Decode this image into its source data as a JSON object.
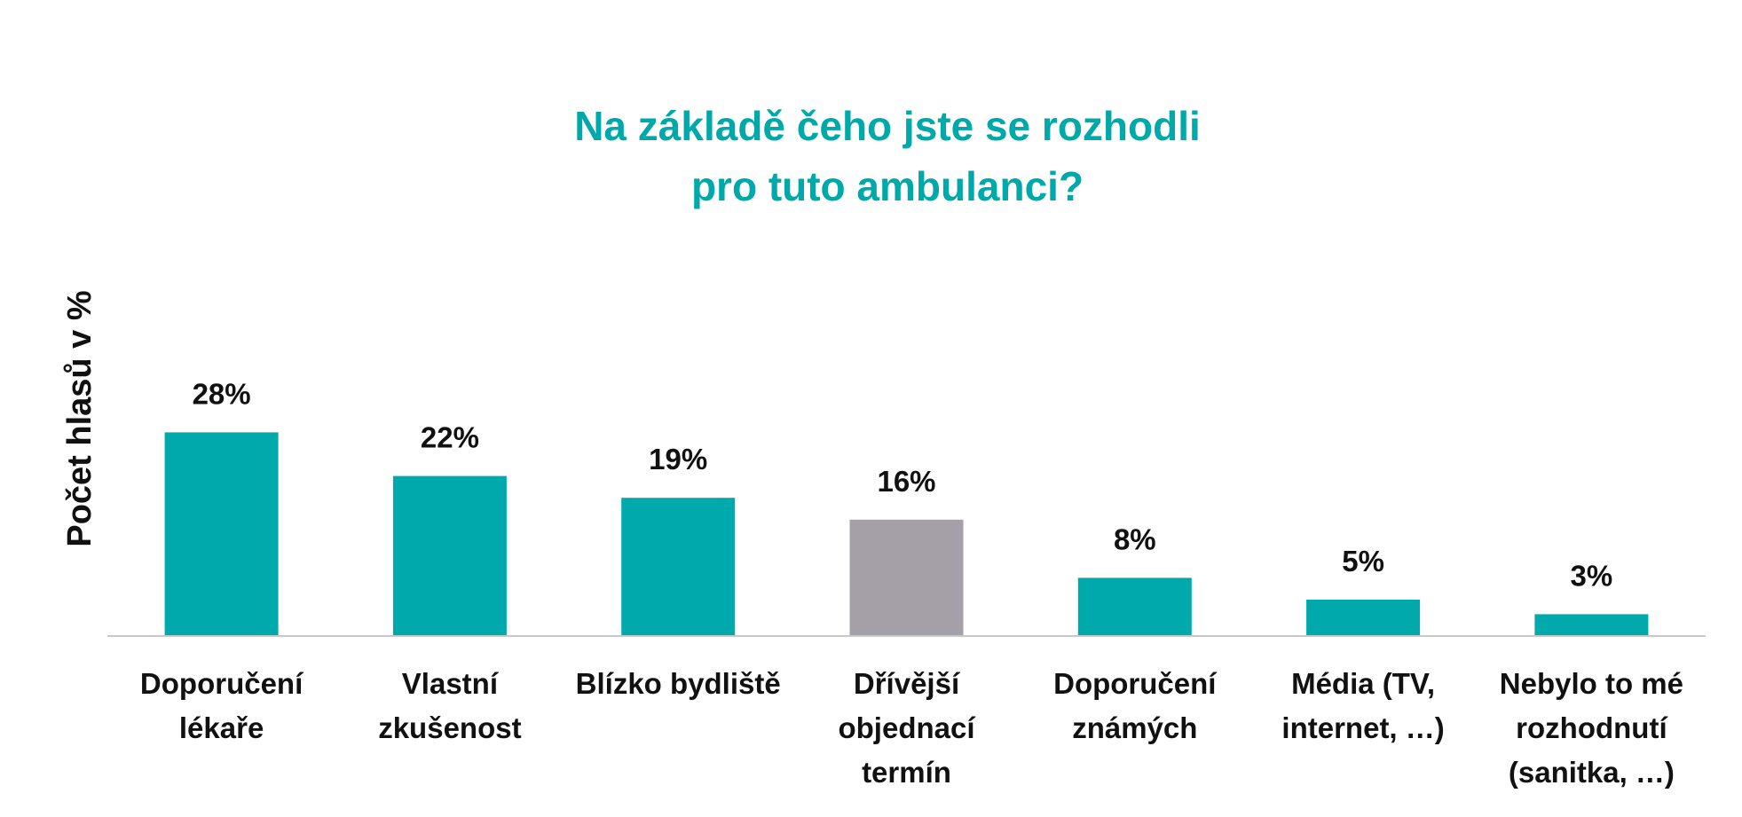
{
  "chart_data": {
    "type": "bar",
    "title_lines": [
      "Na základě čeho jste se rozhodli",
      "pro tuto ambulanci?"
    ],
    "xlabel": "",
    "ylabel": "Počet hlasů v %",
    "ylim": [
      0,
      30
    ],
    "grid": false,
    "legend": "none",
    "categories": [
      [
        "Doporučení",
        "lékaře"
      ],
      [
        "Vlastní",
        "zkušenost"
      ],
      [
        "Blízko bydliště"
      ],
      [
        "Dřívější",
        "objednací",
        "termín"
      ],
      [
        "Doporučení",
        "známých"
      ],
      [
        "Média (TV,",
        "internet, …)"
      ],
      [
        "Nebylo to mé",
        "rozhodnutí",
        "(sanitka, …)"
      ]
    ],
    "values": [
      28,
      22,
      19,
      16,
      8,
      5,
      3
    ],
    "data_labels": [
      "28%",
      "22%",
      "19%",
      "16%",
      "8%",
      "5%",
      "3%"
    ],
    "highlight_index": 3,
    "colors": {
      "bar": "#00a9ab",
      "highlight": "#a59fa8",
      "title": "#00a9a9",
      "axis": "#c8c8c8"
    }
  }
}
